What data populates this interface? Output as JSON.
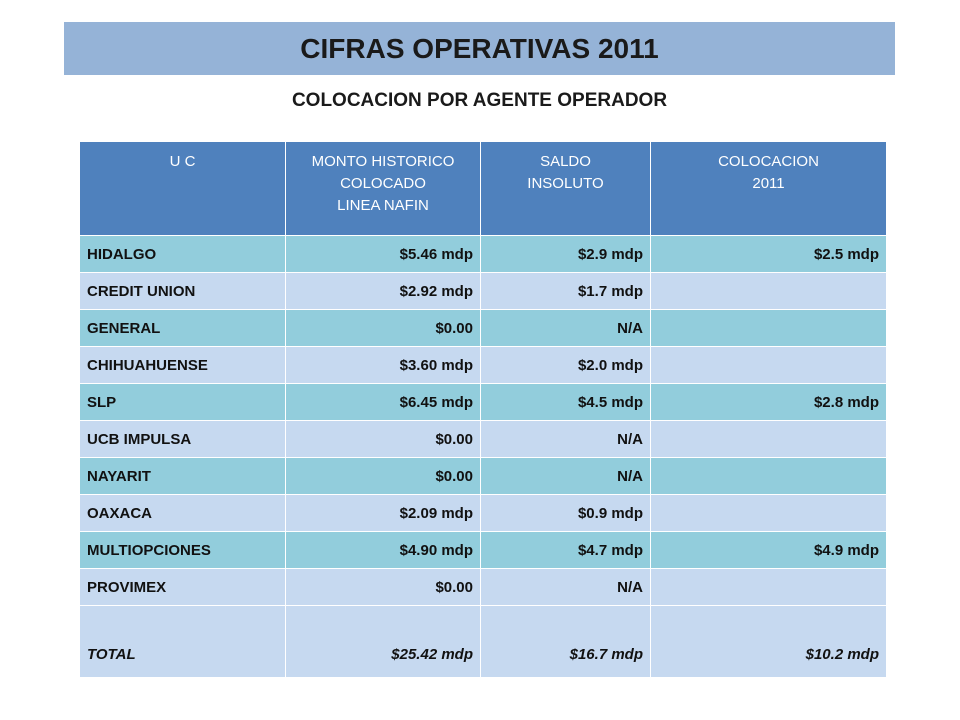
{
  "title": "CIFRAS OPERATIVAS 2011",
  "subtitle": "COLOCACION POR AGENTE OPERADOR",
  "table": {
    "headers": [
      [
        "U C"
      ],
      [
        "MONTO HISTORICO",
        "COLOCADO",
        "LINEA NAFIN"
      ],
      [
        "SALDO",
        "INSOLUTO"
      ],
      [
        "COLOCACION",
        "2011"
      ]
    ],
    "rows": [
      {
        "uc": "HIDALGO",
        "monto": "$5.46 mdp",
        "saldo": "$2.9 mdp",
        "colocacion": "$2.5 mdp"
      },
      {
        "uc": "CREDIT UNION",
        "monto": "$2.92 mdp",
        "saldo": "$1.7 mdp",
        "colocacion": ""
      },
      {
        "uc": "GENERAL",
        "monto": "$0.00",
        "saldo": "N/A",
        "colocacion": ""
      },
      {
        "uc": "CHIHUAHUENSE",
        "monto": "$3.60 mdp",
        "saldo": "$2.0 mdp",
        "colocacion": ""
      },
      {
        "uc": "SLP",
        "monto": "$6.45 mdp",
        "saldo": "$4.5 mdp",
        "colocacion": "$2.8 mdp"
      },
      {
        "uc": "UCB IMPULSA",
        "monto": "$0.00",
        "saldo": "N/A",
        "colocacion": ""
      },
      {
        "uc": "NAYARIT",
        "monto": "$0.00",
        "saldo": "N/A",
        "colocacion": ""
      },
      {
        "uc": "OAXACA",
        "monto": "$2.09 mdp",
        "saldo": "$0.9 mdp",
        "colocacion": ""
      },
      {
        "uc": "MULTIOPCIONES",
        "monto": "$4.90 mdp",
        "saldo": "$4.7 mdp",
        "colocacion": "$4.9 mdp"
      },
      {
        "uc": "PROVIMEX",
        "monto": "$0.00",
        "saldo": "N/A",
        "colocacion": ""
      }
    ],
    "total": {
      "uc": "TOTAL",
      "monto": "$25.42 mdp",
      "saldo": "$16.7 mdp",
      "colocacion": "$10.2 mdp"
    }
  },
  "colors": {
    "title_bg": "#95b3d7",
    "header_bg": "#4f81bd",
    "row_dark": "#92cddc",
    "row_light": "#c6d9f0"
  }
}
